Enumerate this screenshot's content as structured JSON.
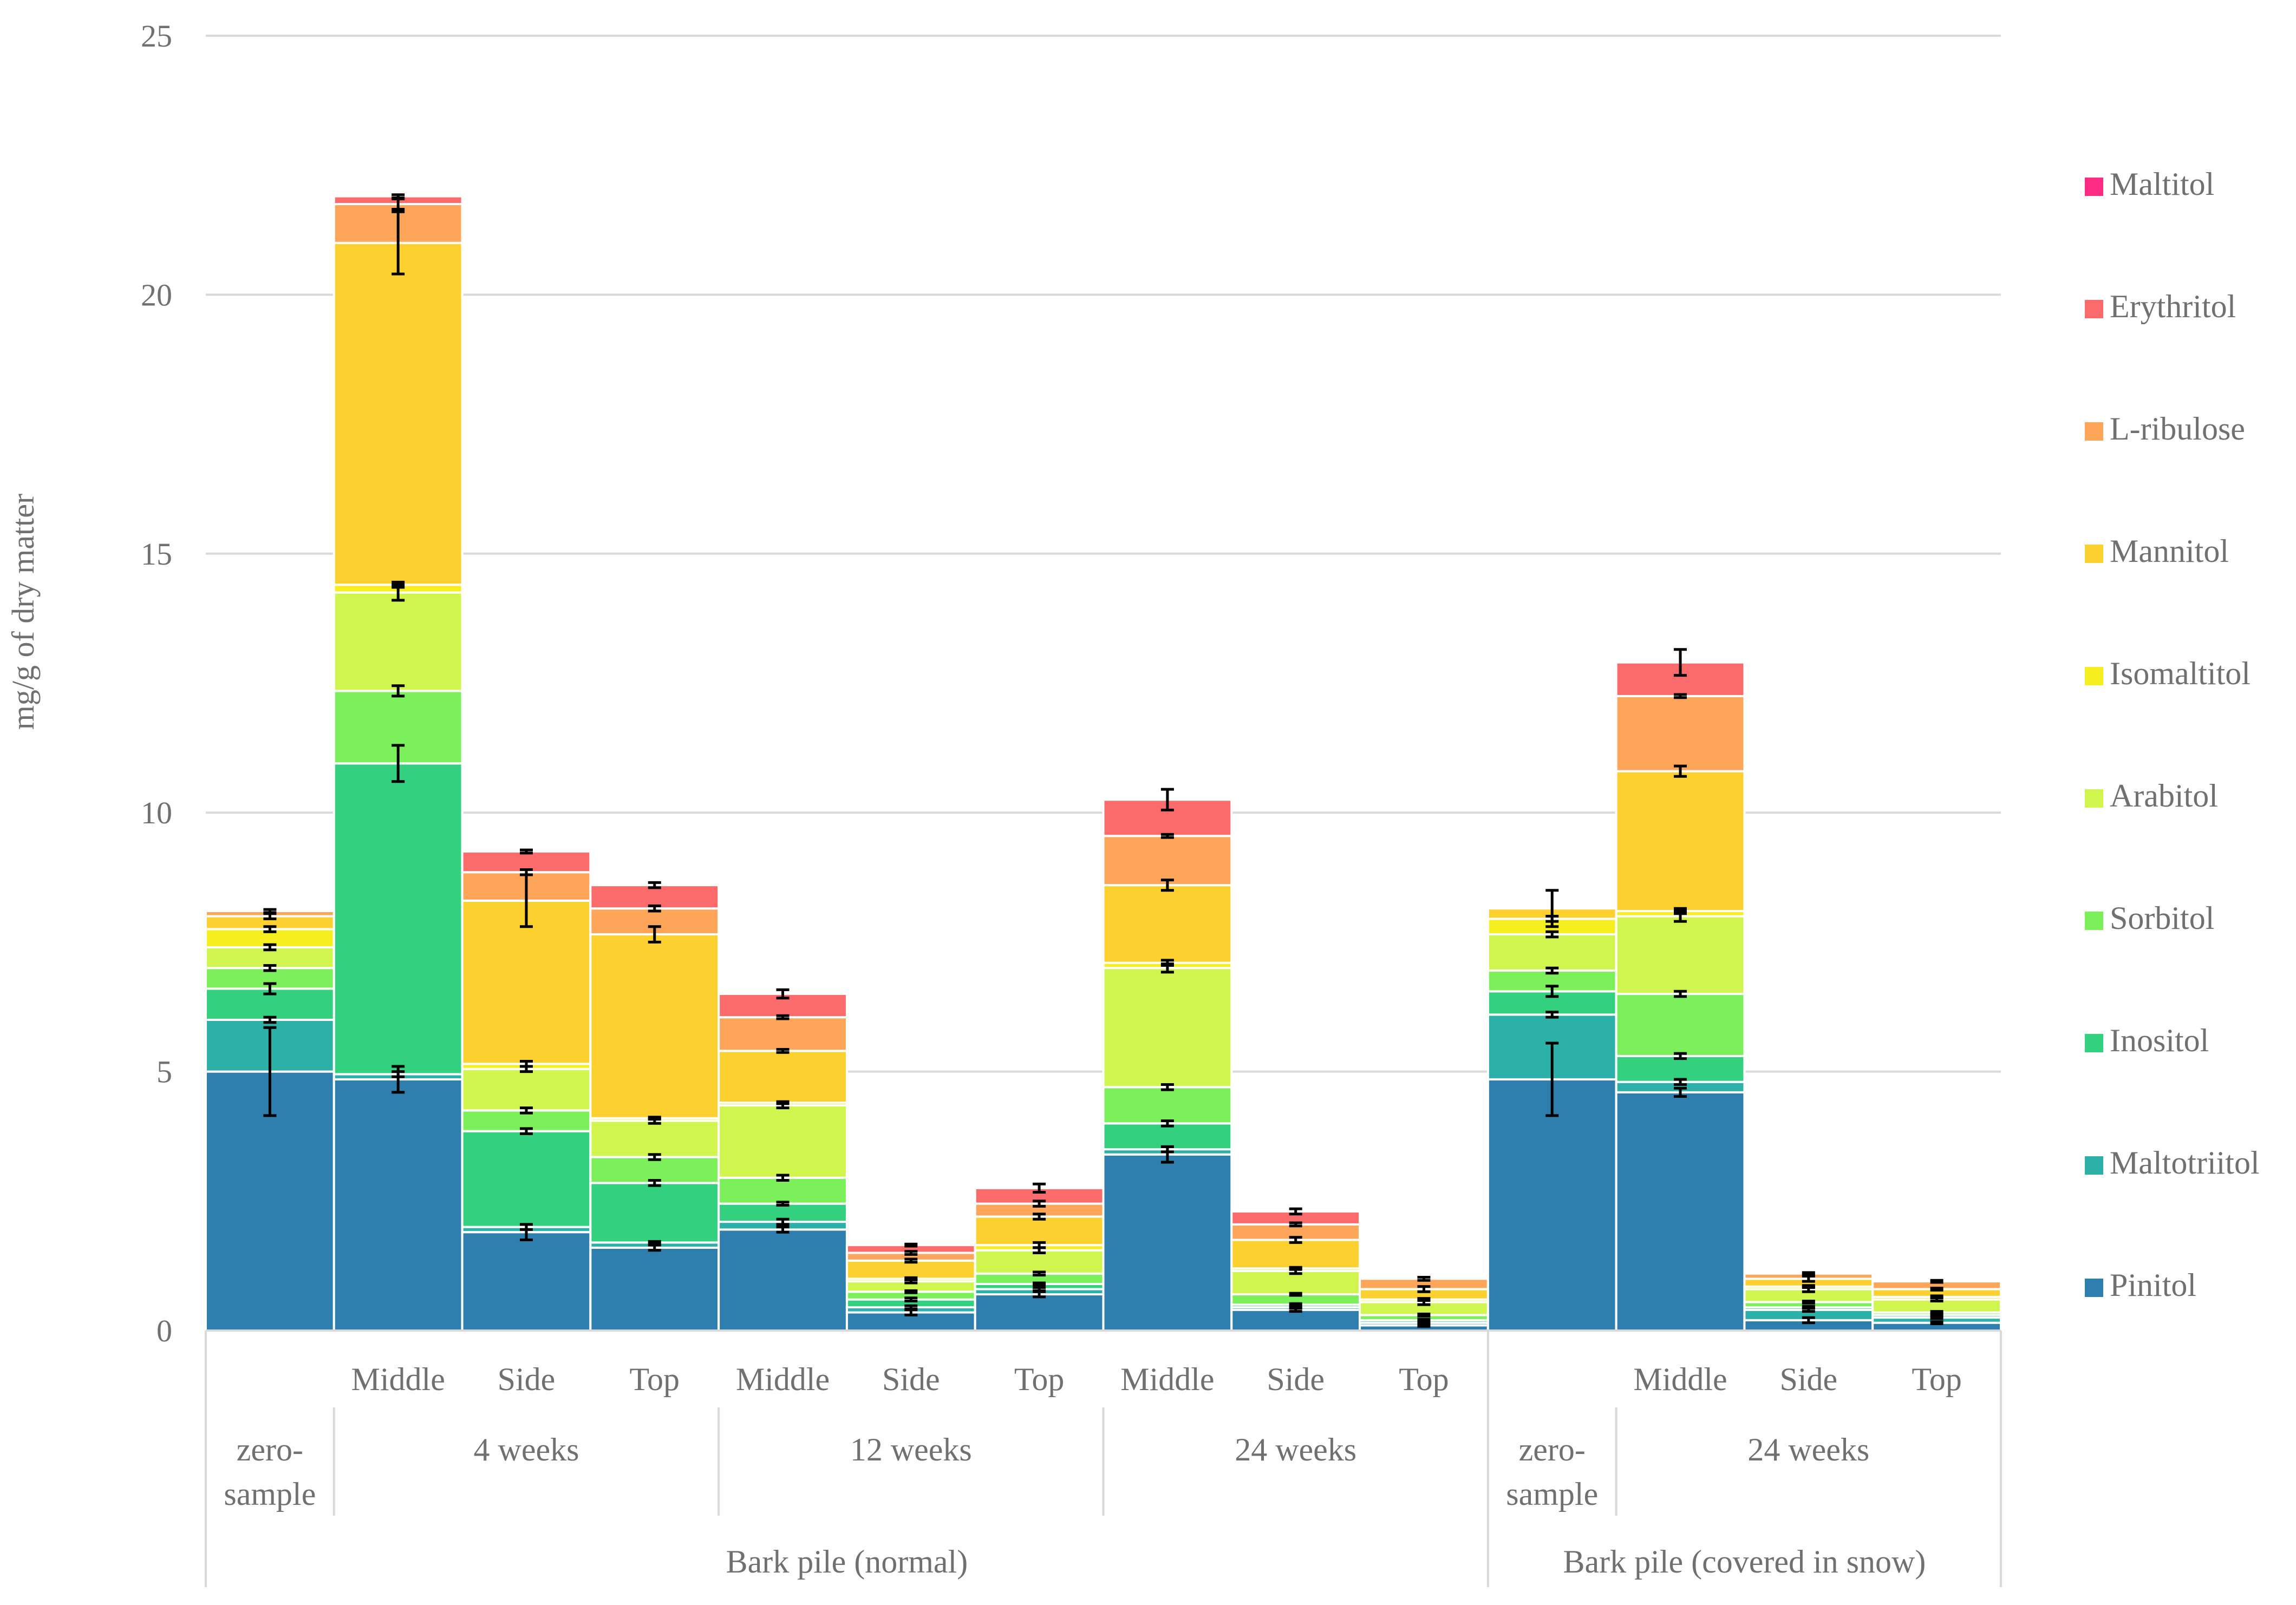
{
  "chart_data": {
    "type": "bar",
    "stacked": true,
    "ylabel": "mg/g of dry matter",
    "ylim": [
      0,
      25
    ],
    "yticks": [
      0,
      5,
      10,
      15,
      20,
      25
    ],
    "grid": true,
    "legend_position": "right",
    "categories": [
      "zero-sample",
      "4 weeks Middle",
      "4 weeks Side",
      "4 weeks Top",
      "12 weeks Middle",
      "12 weeks Side",
      "12 weeks Top",
      "24 weeks Middle",
      "24 weeks Side",
      "24 weeks Top",
      "zero-sample (snow)",
      "24 weeks Middle (snow)",
      "24 weeks Side (snow)",
      "24 weeks Top (snow)"
    ],
    "x_labels_level1": [
      "",
      "Middle",
      "Side",
      "Top",
      "Middle",
      "Side",
      "Top",
      "Middle",
      "Side",
      "Top",
      "",
      "Middle",
      "Side",
      "Top"
    ],
    "x_groups_level2": [
      {
        "label": "zero-sample",
        "span": [
          0,
          0
        ]
      },
      {
        "label": "4 weeks",
        "span": [
          1,
          3
        ]
      },
      {
        "label": "12 weeks",
        "span": [
          4,
          6
        ]
      },
      {
        "label": "24 weeks",
        "span": [
          7,
          9
        ]
      },
      {
        "label": "zero-sample",
        "span": [
          10,
          10
        ]
      },
      {
        "label": "24 weeks",
        "span": [
          11,
          13
        ]
      }
    ],
    "x_groups_level3": [
      {
        "label": "Bark pile (normal)",
        "span": [
          0,
          9
        ]
      },
      {
        "label": "Bark pile (covered in snow)",
        "span": [
          10,
          13
        ]
      }
    ],
    "series": [
      {
        "name": "Pinitol",
        "color": "#2E7EAE",
        "values": [
          5.0,
          4.85,
          1.9,
          1.6,
          1.95,
          0.35,
          0.7,
          3.4,
          0.4,
          0.1,
          4.85,
          4.6,
          0.2,
          0.15
        ],
        "errors": [
          0.85,
          0.25,
          0.15,
          0.05,
          0.05,
          0.05,
          0.05,
          0.15,
          0.03,
          0.02,
          0.7,
          0.08,
          0.05,
          0.02
        ]
      },
      {
        "name": "Maltotriitol",
        "color": "#2DB0A8",
        "values": [
          1.0,
          0.1,
          0.1,
          0.1,
          0.15,
          0.1,
          0.1,
          0.1,
          0.05,
          0.05,
          1.25,
          0.2,
          0.2,
          0.1
        ],
        "errors": [
          0.05,
          0.05,
          0.05,
          0.02,
          0.05,
          0.03,
          0.03,
          0.05,
          0.02,
          0.02,
          0.05,
          0.05,
          0.03,
          0.02
        ]
      },
      {
        "name": "Inositol",
        "color": "#33D17F",
        "values": [
          0.6,
          6.0,
          1.85,
          1.15,
          0.35,
          0.15,
          0.1,
          0.5,
          0.05,
          0.05,
          0.45,
          0.5,
          0.05,
          0.05
        ],
        "errors": [
          0.1,
          0.35,
          0.05,
          0.05,
          0.03,
          0.03,
          0.02,
          0.05,
          0.02,
          0.02,
          0.1,
          0.05,
          0.02,
          0.02
        ]
      },
      {
        "name": "Sorbitol",
        "color": "#7CF05A",
        "values": [
          0.4,
          1.4,
          0.4,
          0.5,
          0.5,
          0.15,
          0.2,
          0.7,
          0.2,
          0.1,
          0.4,
          1.2,
          0.1,
          0.05
        ],
        "errors": [
          0.05,
          0.1,
          0.05,
          0.05,
          0.05,
          0.02,
          0.03,
          0.05,
          0.02,
          0.02,
          0.05,
          0.05,
          0.02,
          0.02
        ]
      },
      {
        "name": "Arabitol",
        "color": "#CFF54E",
        "values": [
          0.4,
          1.9,
          0.8,
          0.7,
          1.4,
          0.2,
          0.45,
          2.3,
          0.45,
          0.25,
          0.7,
          1.5,
          0.25,
          0.25
        ],
        "errors": [
          0.05,
          0.15,
          0.05,
          0.05,
          0.05,
          0.03,
          0.05,
          0.08,
          0.05,
          0.05,
          0.05,
          0.1,
          0.05,
          0.03
        ]
      },
      {
        "name": "Isomaltitol",
        "color": "#F7EE1F",
        "values": [
          0.35,
          0.15,
          0.1,
          0.05,
          0.05,
          0.05,
          0.1,
          0.1,
          0.05,
          0.05,
          0.3,
          0.1,
          0.05,
          0.05
        ],
        "errors": [
          0.05,
          0.05,
          0.05,
          0.02,
          0.02,
          0.02,
          0.05,
          0.05,
          0.02,
          0.02,
          0.05,
          0.05,
          0.02,
          0.02
        ]
      },
      {
        "name": "Mannitol",
        "color": "#FCD02F",
        "values": [
          0.25,
          6.6,
          3.15,
          3.55,
          1.0,
          0.35,
          0.55,
          1.5,
          0.55,
          0.2,
          0.2,
          2.7,
          0.15,
          0.15
        ],
        "errors": [
          0.05,
          0.6,
          0.5,
          0.15,
          0.03,
          0.03,
          0.05,
          0.1,
          0.05,
          0.05,
          0.35,
          0.1,
          0.05,
          0.02
        ]
      },
      {
        "name": "L-ribulose",
        "color": "#FDA65A",
        "values": [
          0.1,
          0.75,
          0.55,
          0.5,
          0.65,
          0.15,
          0.25,
          0.95,
          0.3,
          0.2,
          0.0,
          1.45,
          0.1,
          0.15
        ],
        "errors": [
          0.03,
          0.1,
          0.05,
          0.05,
          0.03,
          0.03,
          0.05,
          0.03,
          0.03,
          0.03,
          0.0,
          0.03,
          0.02,
          0.02
        ]
      },
      {
        "name": "Erythritol",
        "color": "#FB6B6B",
        "values": [
          0.0,
          0.15,
          0.4,
          0.45,
          0.45,
          0.15,
          0.3,
          0.7,
          0.25,
          0.0,
          0.0,
          0.65,
          0.0,
          0.0
        ],
        "errors": [
          0.0,
          0.03,
          0.03,
          0.05,
          0.08,
          0.02,
          0.08,
          0.2,
          0.05,
          0.0,
          0.0,
          0.25,
          0.0,
          0.0
        ]
      },
      {
        "name": "Maltitol",
        "color": "#FB2C82",
        "values": [
          0,
          0,
          0,
          0,
          0,
          0,
          0,
          0,
          0,
          0,
          0,
          0,
          0,
          0
        ],
        "errors": [
          0,
          0,
          0,
          0,
          0,
          0,
          0,
          0,
          0,
          0,
          0,
          0,
          0,
          0
        ]
      }
    ]
  }
}
